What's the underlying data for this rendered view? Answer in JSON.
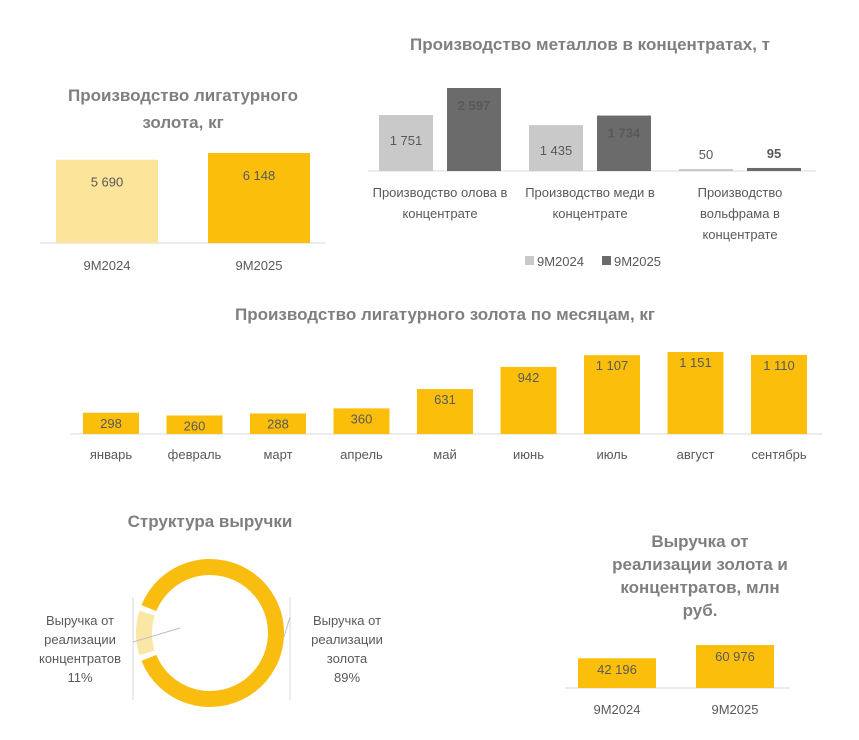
{
  "chart_data": [
    {
      "type": "bar",
      "title": "Производство лигатурного золота, кг",
      "categories": [
        "9M2024",
        "9M2025"
      ],
      "values": [
        5690,
        6148
      ],
      "value_labels": [
        "5 690",
        "6 148"
      ],
      "colors": [
        "#FCE49B",
        "#FBBF0B"
      ],
      "grid": false
    },
    {
      "type": "bar",
      "title": "Производство металлов в концентратах, т",
      "categories": [
        [
          "Производство олова в",
          "концентрате"
        ],
        [
          "Производство меди в",
          "концентрате"
        ],
        [
          "Производство",
          "вольфрама в",
          "концентрате"
        ]
      ],
      "series": [
        {
          "name": "9M2024",
          "values": [
            1751,
            1435,
            50
          ],
          "value_labels": [
            "1 751",
            "1 435",
            "50"
          ],
          "color": "#C9C9C9"
        },
        {
          "name": "9M2025",
          "values": [
            2597,
            1734,
            95
          ],
          "value_labels": [
            "2 597",
            "1 734",
            "95"
          ],
          "color": "#6B6B6B"
        }
      ],
      "legend": "bottom",
      "grid": false
    },
    {
      "type": "bar",
      "title": "Производство лигатурного золота по месяцам, кг",
      "categories": [
        "январь",
        "февраль",
        "март",
        "апрель",
        "май",
        "июнь",
        "июль",
        "август",
        "сентябрь"
      ],
      "values": [
        298,
        260,
        288,
        360,
        631,
        942,
        1107,
        1151,
        1110
      ],
      "value_labels": [
        "298",
        "260",
        "288",
        "360",
        "631",
        "942",
        "1 107",
        "1 151",
        "1 110"
      ],
      "color": "#FBBF0B",
      "grid": false
    },
    {
      "type": "pie",
      "title": "Структура выручки",
      "slices": [
        {
          "label": [
            "Выручка от",
            "реализации",
            "концентратов",
            "11%"
          ],
          "value": 11,
          "color": "#FAE7A5"
        },
        {
          "label": [
            "Выручка от",
            "реализации",
            "золота",
            "89%"
          ],
          "value": 89,
          "color": "#F8BD0E"
        }
      ],
      "donut": true
    },
    {
      "type": "bar",
      "title": [
        "Выручка от",
        "реализации золота и",
        "концентратов, млн",
        "руб."
      ],
      "categories": [
        "9M2024",
        "9M2025"
      ],
      "values": [
        42196,
        60976
      ],
      "value_labels": [
        "42 196",
        "60 976"
      ],
      "color": "#FBBF0B",
      "grid": false
    }
  ]
}
